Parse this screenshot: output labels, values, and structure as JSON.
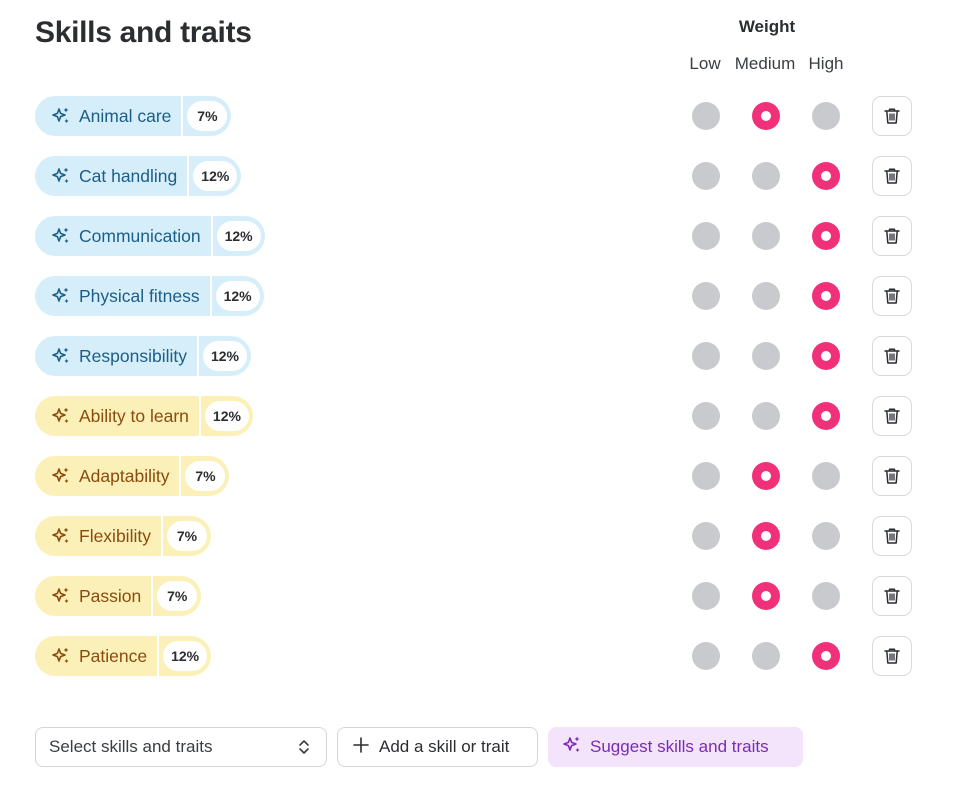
{
  "header": {
    "title": "Skills and traits",
    "weight_title": "Weight",
    "weight_levels": [
      "Low",
      "Medium",
      "High"
    ]
  },
  "colors": {
    "selected": "#f1307a",
    "unselected": "#c9cacd",
    "blue_pill": "#d6eefa",
    "blue_text": "#1c5e86",
    "yellow_pill": "#fbf1b8",
    "yellow_text": "#8a4b0e",
    "suggest_bg": "#f3e4fb",
    "suggest_text": "#7a2bb5"
  },
  "skills": [
    {
      "name": "Animal care",
      "percent": "7%",
      "category": "blue",
      "weight": "Medium"
    },
    {
      "name": "Cat handling",
      "percent": "12%",
      "category": "blue",
      "weight": "High"
    },
    {
      "name": "Communication",
      "percent": "12%",
      "category": "blue",
      "weight": "High"
    },
    {
      "name": "Physical fitness",
      "percent": "12%",
      "category": "blue",
      "weight": "High"
    },
    {
      "name": "Responsibility",
      "percent": "12%",
      "category": "blue",
      "weight": "High"
    },
    {
      "name": "Ability to learn",
      "percent": "12%",
      "category": "yellow",
      "weight": "High"
    },
    {
      "name": "Adaptability",
      "percent": "7%",
      "category": "yellow",
      "weight": "Medium"
    },
    {
      "name": "Flexibility",
      "percent": "7%",
      "category": "yellow",
      "weight": "Medium"
    },
    {
      "name": "Passion",
      "percent": "7%",
      "category": "yellow",
      "weight": "Medium"
    },
    {
      "name": "Patience",
      "percent": "12%",
      "category": "yellow",
      "weight": "High"
    }
  ],
  "icons": {
    "skill": "sparkle-icon",
    "delete": "trash-icon",
    "select": "chevron-up-down-icon",
    "add": "plus-icon",
    "suggest": "sparkle-icon"
  },
  "footer": {
    "select_placeholder": "Select skills and traits",
    "add_label": "Add a skill or trait",
    "suggest_label": "Suggest skills and traits"
  }
}
